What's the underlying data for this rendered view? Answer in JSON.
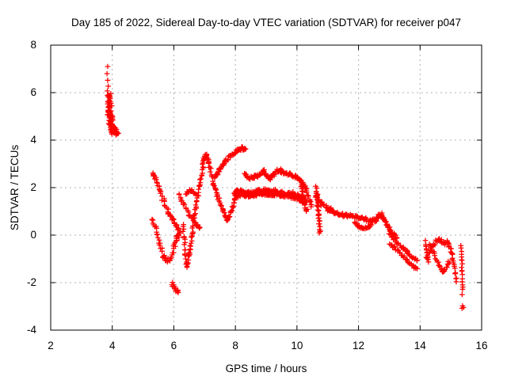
{
  "chart_data": {
    "type": "scatter",
    "title": "Day 185 of 2022, Sidereal Day-to-day VTEC variation (SDTVAR) for receiver p047",
    "xlabel": "GPS time / hours",
    "ylabel": "SDTVAR / TECUs",
    "xlim": [
      2,
      16
    ],
    "ylim": [
      -4,
      8
    ],
    "xticks": [
      2,
      4,
      6,
      8,
      10,
      12,
      14,
      16
    ],
    "yticks": [
      8,
      6,
      4,
      2,
      0,
      -2,
      -4
    ],
    "grid": "dashed-gray-at-major-ticks",
    "legend": "none",
    "marker": "plus",
    "marker_color": "#ff0000",
    "grid_color": "#b0b0b0",
    "axis_color": "#000000",
    "background_color": "#ffffff",
    "series_note": "Dense GNSS arc tracks approximated as polylines (hours, TECU); mode=line tracks are sampled with n markers and jitter jx/jy, mode=points are literal markers.",
    "series": [
      {
        "name": "arc-a-top",
        "mode": "points",
        "jx": 0,
        "jy": 0,
        "pts": [
          [
            3.85,
            7.1
          ],
          [
            3.83,
            6.8
          ],
          [
            3.85,
            6.52
          ],
          [
            3.87,
            6.27
          ],
          [
            3.84,
            6.07
          ],
          [
            3.88,
            5.9
          ]
        ]
      },
      {
        "name": "arc-a-blob",
        "mode": "line",
        "n": 88,
        "jx": 0.085,
        "jy": 0.1,
        "pts": [
          [
            3.9,
            5.95
          ],
          [
            3.93,
            5.5
          ],
          [
            3.92,
            5.1
          ],
          [
            3.96,
            4.75
          ],
          [
            4.0,
            4.45
          ],
          [
            4.05,
            4.28
          ]
        ]
      },
      {
        "name": "arc-a-tail",
        "mode": "line",
        "n": 12,
        "jx": 0.03,
        "jy": 0.06,
        "pts": [
          [
            4.08,
            4.6
          ],
          [
            4.14,
            4.35
          ],
          [
            4.18,
            4.28
          ]
        ]
      },
      {
        "name": "arc-b-descend",
        "mode": "line",
        "n": 50,
        "jx": 0.035,
        "jy": 0.08,
        "pts": [
          [
            5.3,
            2.62
          ],
          [
            5.42,
            2.3
          ],
          [
            5.55,
            1.85
          ],
          [
            5.68,
            1.4
          ],
          [
            5.82,
            1.0
          ],
          [
            5.95,
            0.7
          ],
          [
            6.08,
            0.4
          ],
          [
            6.2,
            0.12
          ]
        ]
      },
      {
        "name": "arc-c-vee",
        "mode": "line",
        "n": 55,
        "jx": 0.03,
        "jy": 0.08,
        "pts": [
          [
            5.3,
            0.72
          ],
          [
            5.42,
            0.25
          ],
          [
            5.53,
            -0.3
          ],
          [
            5.65,
            -0.85
          ],
          [
            5.75,
            -1.05
          ],
          [
            5.88,
            -1.05
          ],
          [
            6.0,
            -0.55
          ],
          [
            6.1,
            -0.12
          ],
          [
            6.17,
            0.05
          ]
        ]
      },
      {
        "name": "arc-d-rise-peak-dip",
        "mode": "line",
        "n": 160,
        "jx": 0.025,
        "jy": 0.08,
        "pts": [
          [
            6.3,
            0.4
          ],
          [
            6.36,
            -0.5
          ],
          [
            6.42,
            -1.32
          ],
          [
            6.5,
            -0.75
          ],
          [
            6.58,
            -0.1
          ],
          [
            6.65,
            0.6
          ],
          [
            6.73,
            1.3
          ],
          [
            6.82,
            2.05
          ],
          [
            6.92,
            2.75
          ],
          [
            7.0,
            3.25
          ],
          [
            7.07,
            3.42
          ],
          [
            7.15,
            2.95
          ],
          [
            7.25,
            2.35
          ],
          [
            7.38,
            1.85
          ],
          [
            7.52,
            1.3
          ],
          [
            7.65,
            0.8
          ],
          [
            7.73,
            0.62
          ],
          [
            7.85,
            0.95
          ],
          [
            7.97,
            1.45
          ],
          [
            8.07,
            1.75
          ]
        ]
      },
      {
        "name": "arc-e-rise-83",
        "mode": "line",
        "n": 60,
        "jx": 0.025,
        "jy": 0.07,
        "pts": [
          [
            7.32,
            2.42
          ],
          [
            7.45,
            2.7
          ],
          [
            7.6,
            2.95
          ],
          [
            7.78,
            3.25
          ],
          [
            7.95,
            3.45
          ],
          [
            8.1,
            3.58
          ],
          [
            8.22,
            3.67
          ],
          [
            8.33,
            3.62
          ]
        ]
      },
      {
        "name": "band-upper",
        "mode": "line",
        "n": 120,
        "jx": 0.022,
        "jy": 0.07,
        "pts": [
          [
            8.3,
            2.58
          ],
          [
            8.45,
            2.38
          ],
          [
            8.6,
            2.42
          ],
          [
            8.75,
            2.55
          ],
          [
            8.92,
            2.72
          ],
          [
            9.05,
            2.45
          ],
          [
            9.15,
            2.38
          ],
          [
            9.28,
            2.6
          ],
          [
            9.42,
            2.75
          ],
          [
            9.55,
            2.65
          ],
          [
            9.7,
            2.58
          ],
          [
            9.85,
            2.52
          ],
          [
            10.0,
            2.42
          ],
          [
            10.15,
            2.28
          ],
          [
            10.27,
            2.0
          ],
          [
            10.38,
            1.6
          ],
          [
            10.48,
            1.25
          ]
        ]
      },
      {
        "name": "band-lower-1",
        "mode": "line",
        "n": 120,
        "jx": 0.022,
        "jy": 0.07,
        "pts": [
          [
            7.95,
            1.72
          ],
          [
            8.1,
            1.88
          ],
          [
            8.3,
            1.82
          ],
          [
            8.5,
            1.75
          ],
          [
            8.7,
            1.85
          ],
          [
            8.9,
            1.9
          ],
          [
            9.1,
            1.82
          ],
          [
            9.3,
            1.86
          ],
          [
            9.5,
            1.8
          ],
          [
            9.68,
            1.72
          ],
          [
            9.85,
            1.76
          ],
          [
            10.0,
            1.68
          ],
          [
            10.15,
            1.58
          ],
          [
            10.3,
            1.45
          ]
        ]
      },
      {
        "name": "band-lower-2",
        "mode": "line",
        "n": 110,
        "jx": 0.022,
        "jy": 0.06,
        "pts": [
          [
            8.0,
            1.62
          ],
          [
            8.2,
            1.72
          ],
          [
            8.4,
            1.66
          ],
          [
            8.6,
            1.68
          ],
          [
            8.8,
            1.74
          ],
          [
            9.0,
            1.72
          ],
          [
            9.2,
            1.7
          ],
          [
            9.4,
            1.72
          ],
          [
            9.6,
            1.66
          ],
          [
            9.8,
            1.62
          ],
          [
            10.0,
            1.56
          ],
          [
            10.15,
            1.46
          ],
          [
            10.28,
            1.32
          ]
        ]
      },
      {
        "name": "fall-103",
        "mode": "line",
        "n": 22,
        "jx": 0.022,
        "jy": 0.07,
        "pts": [
          [
            10.12,
            2.35
          ],
          [
            10.17,
            1.9
          ],
          [
            10.22,
            1.5
          ],
          [
            10.28,
            1.15
          ],
          [
            10.33,
            1.05
          ]
        ]
      },
      {
        "name": "spike-107",
        "mode": "line",
        "n": 34,
        "jx": 0.028,
        "jy": 0.1,
        "pts": [
          [
            10.63,
            1.98
          ],
          [
            10.66,
            1.5
          ],
          [
            10.69,
            1.0
          ],
          [
            10.72,
            0.5
          ],
          [
            10.74,
            0.08
          ]
        ]
      },
      {
        "name": "wedge-108",
        "mode": "line",
        "n": 30,
        "jx": 0.03,
        "jy": 0.09,
        "pts": [
          [
            10.6,
            1.72
          ],
          [
            10.72,
            1.42
          ],
          [
            10.85,
            1.25
          ],
          [
            11.0,
            1.12
          ],
          [
            11.15,
            1.02
          ]
        ]
      },
      {
        "name": "band-right",
        "mode": "line",
        "n": 120,
        "jx": 0.022,
        "jy": 0.07,
        "pts": [
          [
            11.0,
            1.08
          ],
          [
            11.2,
            0.98
          ],
          [
            11.4,
            0.88
          ],
          [
            11.6,
            0.84
          ],
          [
            11.8,
            0.8
          ],
          [
            12.0,
            0.76
          ],
          [
            12.2,
            0.68
          ],
          [
            12.4,
            0.6
          ],
          [
            12.55,
            0.62
          ],
          [
            12.65,
            0.82
          ],
          [
            12.75,
            0.9
          ],
          [
            12.85,
            0.62
          ],
          [
            12.95,
            0.35
          ],
          [
            13.1,
            0.12
          ],
          [
            13.25,
            -0.12
          ]
        ]
      },
      {
        "name": "loop-12",
        "mode": "line",
        "n": 26,
        "jx": 0.02,
        "jy": 0.05,
        "pts": [
          [
            11.88,
            0.56
          ],
          [
            12.0,
            0.38
          ],
          [
            12.15,
            0.3
          ],
          [
            12.3,
            0.32
          ],
          [
            12.42,
            0.45
          ]
        ]
      },
      {
        "name": "strip-13a",
        "mode": "line",
        "n": 34,
        "jx": 0.02,
        "jy": 0.06,
        "pts": [
          [
            13.0,
            0.02
          ],
          [
            13.25,
            -0.3
          ],
          [
            13.5,
            -0.62
          ],
          [
            13.7,
            -0.85
          ],
          [
            13.92,
            -1.1
          ]
        ]
      },
      {
        "name": "strip-13b",
        "mode": "line",
        "n": 32,
        "jx": 0.02,
        "jy": 0.06,
        "pts": [
          [
            13.02,
            -0.35
          ],
          [
            13.25,
            -0.65
          ],
          [
            13.5,
            -0.95
          ],
          [
            13.72,
            -1.25
          ],
          [
            13.9,
            -1.45
          ]
        ]
      },
      {
        "name": "drop-142",
        "mode": "line",
        "n": 14,
        "jx": 0.02,
        "jy": 0.08,
        "pts": [
          [
            14.18,
            -0.3
          ],
          [
            14.22,
            -0.75
          ],
          [
            14.27,
            -1.15
          ]
        ]
      },
      {
        "name": "zig-145a",
        "mode": "line",
        "n": 26,
        "jx": 0.02,
        "jy": 0.07,
        "pts": [
          [
            14.2,
            -1.0
          ],
          [
            14.35,
            -0.62
          ],
          [
            14.52,
            -0.25
          ],
          [
            14.68,
            -0.2
          ],
          [
            14.8,
            -0.35
          ]
        ]
      },
      {
        "name": "zig-145b",
        "mode": "line",
        "n": 30,
        "jx": 0.02,
        "jy": 0.07,
        "pts": [
          [
            14.3,
            -0.35
          ],
          [
            14.45,
            -0.8
          ],
          [
            14.6,
            -1.2
          ],
          [
            14.72,
            -1.55
          ],
          [
            14.82,
            -1.4
          ],
          [
            14.95,
            -1.1
          ]
        ]
      },
      {
        "name": "hook-15",
        "mode": "line",
        "n": 26,
        "jx": 0.02,
        "jy": 0.08,
        "pts": [
          [
            14.85,
            -0.25
          ],
          [
            14.97,
            -0.5
          ],
          [
            15.05,
            -0.9
          ],
          [
            15.12,
            -1.4
          ],
          [
            15.18,
            -1.95
          ]
        ]
      },
      {
        "name": "column-154",
        "mode": "line",
        "n": 18,
        "jx": 0.015,
        "jy": 0.06,
        "pts": [
          [
            15.33,
            -0.4
          ],
          [
            15.35,
            -0.9
          ],
          [
            15.36,
            -1.4
          ],
          [
            15.38,
            -1.9
          ],
          [
            15.37,
            -2.45
          ]
        ]
      },
      {
        "name": "dots-154-low",
        "mode": "points",
        "jx": 0,
        "jy": 0,
        "pts": [
          [
            15.38,
            -2.98
          ],
          [
            15.41,
            -3.05
          ],
          [
            15.36,
            -3.08
          ]
        ]
      },
      {
        "name": "cross-65",
        "mode": "line",
        "n": 28,
        "jx": 0.025,
        "jy": 0.07,
        "pts": [
          [
            6.15,
            1.75
          ],
          [
            6.32,
            1.3
          ],
          [
            6.5,
            0.88
          ],
          [
            6.68,
            0.55
          ],
          [
            6.85,
            0.3
          ]
        ]
      },
      {
        "name": "seg-66",
        "mode": "line",
        "n": 14,
        "jx": 0.02,
        "jy": 0.06,
        "pts": [
          [
            6.4,
            1.78
          ],
          [
            6.55,
            1.9
          ],
          [
            6.7,
            1.78
          ]
        ]
      },
      {
        "name": "blob-6-low",
        "mode": "line",
        "n": 14,
        "jx": 0.03,
        "jy": 0.08,
        "pts": [
          [
            5.95,
            -2.05
          ],
          [
            6.05,
            -2.28
          ],
          [
            6.17,
            -2.42
          ]
        ]
      }
    ]
  }
}
